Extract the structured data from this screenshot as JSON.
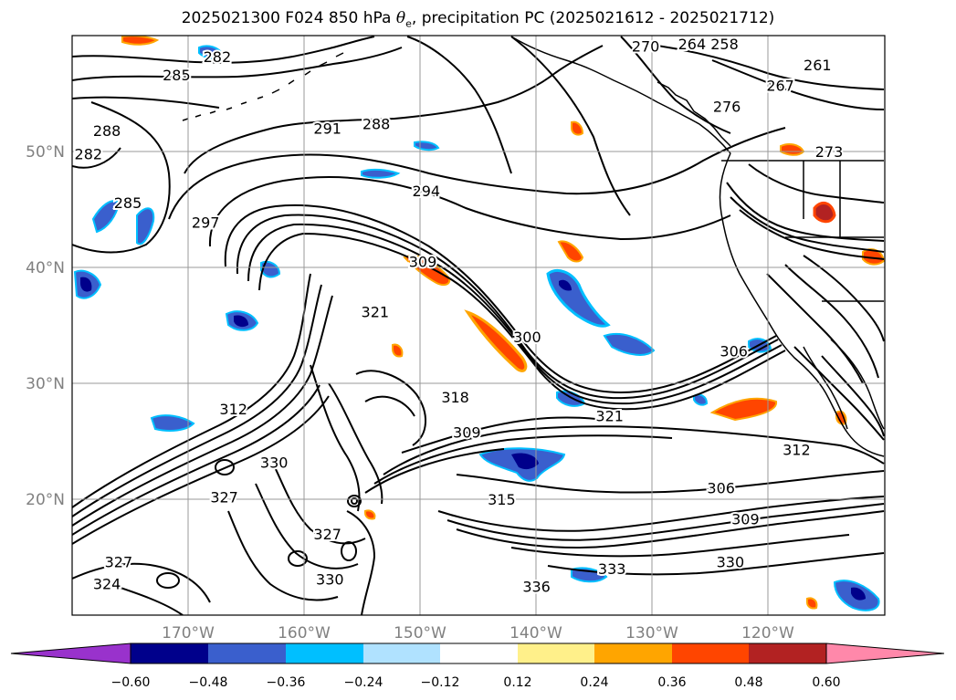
{
  "title": {
    "prefix": "2025021300 F024 850 hPa ",
    "symbol": "θ",
    "subscript": "e",
    "suffix": ", precipitation PC (2025021612 - 2025021712)"
  },
  "map": {
    "projection": "PlateCarree",
    "lon_range": [
      -180,
      -110
    ],
    "lat_range": [
      10,
      60
    ],
    "gridlines": true,
    "lon_labels": [
      "170°W",
      "160°W",
      "150°W",
      "140°W",
      "130°W",
      "120°W"
    ],
    "lat_labels": [
      "50°N",
      "40°N",
      "30°N",
      "20°N"
    ],
    "colors": {
      "coast": "#000000",
      "grid": "#999999",
      "tick_label": "#808080"
    }
  },
  "contours": {
    "variable": "850 hPa theta-e",
    "labels": [
      {
        "text": "285",
        "lon": -171.0,
        "lat": 56.6
      },
      {
        "text": "282",
        "lon": -167.5,
        "lat": 58.2
      },
      {
        "text": "288",
        "lon": -177.0,
        "lat": 51.8
      },
      {
        "text": "282",
        "lon": -178.6,
        "lat": 49.8
      },
      {
        "text": "291",
        "lon": -158.0,
        "lat": 52.0
      },
      {
        "text": "288",
        "lon": -153.8,
        "lat": 52.4
      },
      {
        "text": "285",
        "lon": -175.2,
        "lat": 45.6
      },
      {
        "text": "297",
        "lon": -168.5,
        "lat": 43.9
      },
      {
        "text": "294",
        "lon": -149.5,
        "lat": 46.6
      },
      {
        "text": "309",
        "lon": -149.8,
        "lat": 40.5
      },
      {
        "text": "321",
        "lon": -153.9,
        "lat": 36.2
      },
      {
        "text": "300",
        "lon": -140.8,
        "lat": 34.0
      },
      {
        "text": "306",
        "lon": -123.0,
        "lat": 32.8
      },
      {
        "text": "312",
        "lon": -166.1,
        "lat": 27.8
      },
      {
        "text": "318",
        "lon": -147.0,
        "lat": 28.8
      },
      {
        "text": "321",
        "lon": -133.7,
        "lat": 27.2
      },
      {
        "text": "309",
        "lon": -146.0,
        "lat": 25.8
      },
      {
        "text": "312",
        "lon": -117.6,
        "lat": 24.3
      },
      {
        "text": "330",
        "lon": -162.6,
        "lat": 23.2
      },
      {
        "text": "327",
        "lon": -166.9,
        "lat": 20.2
      },
      {
        "text": "306",
        "lon": -124.1,
        "lat": 21.0
      },
      {
        "text": "315",
        "lon": -143.0,
        "lat": 20.0
      },
      {
        "text": "309",
        "lon": -122.0,
        "lat": 18.3
      },
      {
        "text": "327",
        "lon": -158.0,
        "lat": 17.0
      },
      {
        "text": "327",
        "lon": -176.0,
        "lat": 14.6
      },
      {
        "text": "330",
        "lon": -123.3,
        "lat": 14.6
      },
      {
        "text": "333",
        "lon": -133.5,
        "lat": 14.0
      },
      {
        "text": "330",
        "lon": -157.8,
        "lat": 13.1
      },
      {
        "text": "336",
        "lon": -140.0,
        "lat": 12.5
      },
      {
        "text": "324",
        "lon": -177.0,
        "lat": 12.7
      },
      {
        "text": "270",
        "lon": -130.6,
        "lat": 59.1
      },
      {
        "text": "264",
        "lon": -126.6,
        "lat": 59.3
      },
      {
        "text": "258",
        "lon": -123.8,
        "lat": 59.3
      },
      {
        "text": "261",
        "lon": -115.8,
        "lat": 57.5
      },
      {
        "text": "267",
        "lon": -119.0,
        "lat": 55.7
      },
      {
        "text": "276",
        "lon": -123.6,
        "lat": 53.9
      },
      {
        "text": "273",
        "lon": -114.8,
        "lat": 50.0
      }
    ]
  },
  "precipitation_pc": {
    "levels": [
      -0.6,
      -0.48,
      -0.36,
      -0.24,
      -0.12,
      0.12,
      0.24,
      0.36,
      0.48,
      0.6
    ],
    "colors": [
      "#9932cc",
      "#00008b",
      "#3a5fcd",
      "#00bfff",
      "#b0e2ff",
      "#ffffff",
      "#fff08a",
      "#ffa500",
      "#ff4500",
      "#b22222",
      "#ff88aa"
    ]
  },
  "colorbar": {
    "tick_labels": [
      "−0.60",
      "−0.48",
      "−0.36",
      "−0.24",
      "−0.12",
      "0.12",
      "0.24",
      "0.36",
      "0.48",
      "0.60"
    ],
    "extend": "both"
  }
}
